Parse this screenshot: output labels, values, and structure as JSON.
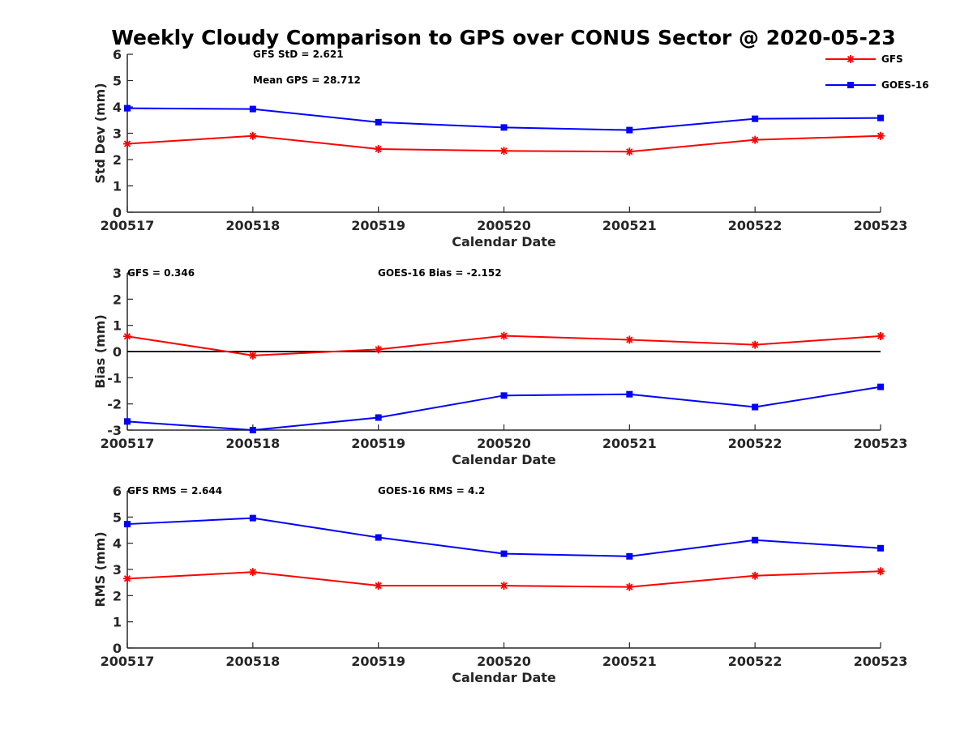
{
  "figure_title": "Weekly Cloudy Comparison to GPS over CONUS Sector @ 2020-05-23",
  "legend": [
    {
      "label": "GFS",
      "color": "#ff0000",
      "marker": "asterisk"
    },
    {
      "label": "GOES-16",
      "color": "#0000ff",
      "marker": "square"
    }
  ],
  "chart_data": [
    {
      "type": "line",
      "ylabel": "Std Dev (mm)",
      "xlabel": "Calendar Date",
      "categories": [
        "200517",
        "200518",
        "200519",
        "200520",
        "200521",
        "200522",
        "200523"
      ],
      "ylim": [
        0,
        6
      ],
      "yticks": [
        "0",
        "1",
        "2",
        "3",
        "4",
        "5",
        "6"
      ],
      "annotations": [
        "GFS StD = 2.621",
        "Mean GPS = 28.712"
      ],
      "series": [
        {
          "name": "GFS",
          "color": "#ff0000",
          "values": [
            2.6,
            2.9,
            2.4,
            2.33,
            2.3,
            2.75,
            2.9
          ]
        },
        {
          "name": "GOES-16",
          "color": "#0000ff",
          "values": [
            3.95,
            3.92,
            3.42,
            3.22,
            3.12,
            3.55,
            3.58
          ]
        }
      ]
    },
    {
      "type": "line",
      "ylabel": "Bias (mm)",
      "xlabel": "Calendar Date",
      "categories": [
        "200517",
        "200518",
        "200519",
        "200520",
        "200521",
        "200522",
        "200523"
      ],
      "ylim": [
        -3,
        3
      ],
      "yticks": [
        "-3",
        "-2",
        "-1",
        "0",
        "1",
        "2",
        "3"
      ],
      "reference_line": 0,
      "annotations": [
        "GFS = 0.346",
        "GOES-16 Bias  = -2.152"
      ],
      "series": [
        {
          "name": "GFS",
          "color": "#ff0000",
          "values": [
            0.58,
            -0.15,
            0.08,
            0.6,
            0.45,
            0.26,
            0.59
          ]
        },
        {
          "name": "GOES-16",
          "color": "#0000ff",
          "values": [
            -2.67,
            -3.0,
            -2.52,
            -1.68,
            -1.63,
            -2.12,
            -1.35
          ]
        }
      ]
    },
    {
      "type": "line",
      "ylabel": "RMS (mm)",
      "xlabel": "Calendar Date",
      "categories": [
        "200517",
        "200518",
        "200519",
        "200520",
        "200521",
        "200522",
        "200523"
      ],
      "ylim": [
        0,
        6
      ],
      "yticks": [
        "0",
        "1",
        "2",
        "3",
        "4",
        "5",
        "6"
      ],
      "annotations": [
        "GFS RMS = 2.644",
        "GOES-16 RMS = 4.2"
      ],
      "series": [
        {
          "name": "GFS",
          "color": "#ff0000",
          "values": [
            2.65,
            2.9,
            2.38,
            2.38,
            2.33,
            2.76,
            2.93
          ]
        },
        {
          "name": "GOES-16",
          "color": "#0000ff",
          "values": [
            4.73,
            4.96,
            4.22,
            3.6,
            3.5,
            4.12,
            3.81
          ]
        }
      ]
    }
  ]
}
